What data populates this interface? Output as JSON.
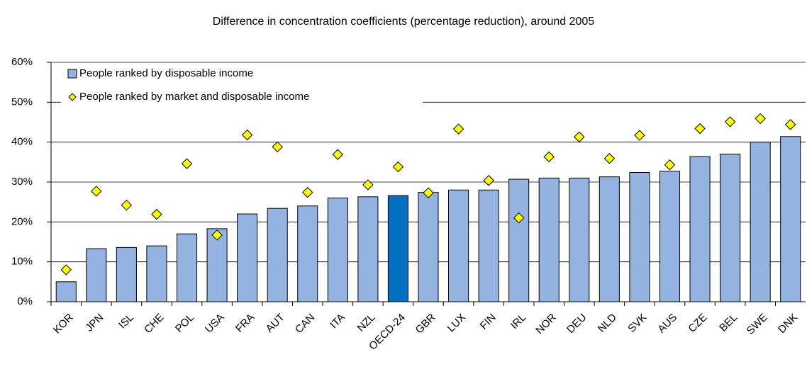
{
  "chart_data": {
    "type": "bar",
    "title": "Difference in concentration coefficients (percentage reduction), around 2005",
    "categories": [
      "KOR",
      "JPN",
      "ISL",
      "CHE",
      "POL",
      "USA",
      "FRA",
      "AUT",
      "CAN",
      "ITA",
      "NZL",
      "OECD-24",
      "GBR",
      "LUX",
      "FIN",
      "IRL",
      "NOR",
      "DEU",
      "NLD",
      "SVK",
      "AUS",
      "CZE",
      "BEL",
      "SWE",
      "DNK"
    ],
    "series": [
      {
        "name": "People ranked by disposable income",
        "type": "bar",
        "color": "#95b3e0",
        "colors": [
          "#95b3e0",
          "#95b3e0",
          "#95b3e0",
          "#95b3e0",
          "#95b3e0",
          "#95b3e0",
          "#95b3e0",
          "#95b3e0",
          "#95b3e0",
          "#95b3e0",
          "#95b3e0",
          "#0070c0",
          "#95b3e0",
          "#95b3e0",
          "#95b3e0",
          "#95b3e0",
          "#95b3e0",
          "#95b3e0",
          "#95b3e0",
          "#95b3e0",
          "#95b3e0",
          "#95b3e0",
          "#95b3e0",
          "#95b3e0",
          "#95b3e0"
        ],
        "values": [
          5,
          13.3,
          13.6,
          14,
          17,
          18.3,
          22,
          23.4,
          24,
          26,
          26.3,
          26.6,
          27.4,
          28,
          28,
          30.7,
          31,
          31,
          31.3,
          32.4,
          32.7,
          36.4,
          37,
          40,
          41.4
        ]
      },
      {
        "name": "People ranked by market and disposable income",
        "type": "diamond",
        "color": "#ffff00",
        "values": [
          8,
          27.7,
          24.2,
          21.9,
          34.6,
          16.7,
          41.8,
          38.8,
          27.4,
          36.9,
          29.3,
          33.8,
          27.3,
          43.3,
          30.4,
          21,
          36.3,
          41.3,
          35.9,
          41.7,
          34.3,
          43.4,
          45.1,
          45.9,
          44.4
        ]
      }
    ],
    "ylim": [
      0,
      60
    ],
    "yticks": [
      {
        "value": 0,
        "label": "0%"
      },
      {
        "value": 10,
        "label": "10%"
      },
      {
        "value": 20,
        "label": "20%"
      },
      {
        "value": 30,
        "label": "30%"
      },
      {
        "value": 40,
        "label": "40%"
      },
      {
        "value": 50,
        "label": "50%"
      },
      {
        "value": 60,
        "label": "60%"
      }
    ],
    "grid": true,
    "legend": "upper left"
  }
}
